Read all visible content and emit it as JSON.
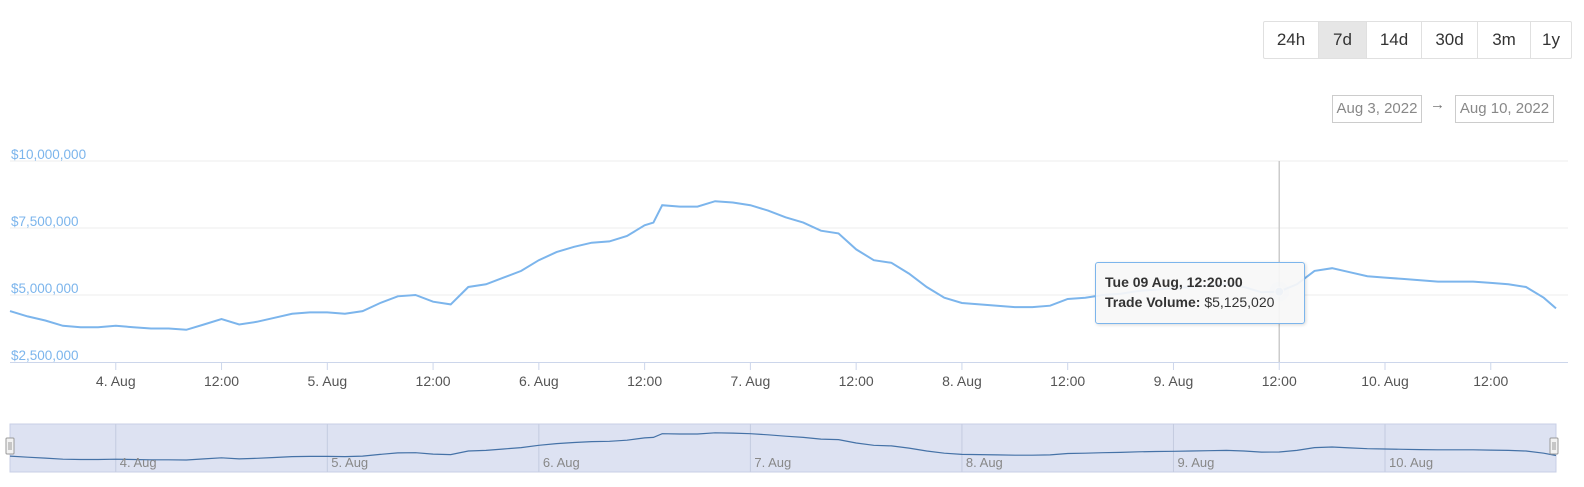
{
  "range_buttons": [
    {
      "label": "24h",
      "active": false
    },
    {
      "label": "7d",
      "active": true
    },
    {
      "label": "14d",
      "active": false
    },
    {
      "label": "30d",
      "active": false
    },
    {
      "label": "3m",
      "active": false
    },
    {
      "label": "1y",
      "active": false
    }
  ],
  "date_range": {
    "from": "Aug 3, 2022",
    "arrow": "→",
    "to": "Aug 10, 2022"
  },
  "tooltip": {
    "datetime": "Tue 09 Aug, 12:20:00",
    "label": "Trade Volume:",
    "value": "$5,125,020"
  },
  "colors": {
    "series": "#7cb5ec",
    "navigator_series": "#4572a7",
    "navigator_mask": "#dde2f2",
    "axis_label": "#7cb5ec"
  },
  "chart_data": {
    "type": "line",
    "x_unit": "hours since 4. Aug 00:00",
    "xlim": [
      -12.0,
      163.4
    ],
    "ylim": [
      2500000,
      10000000
    ],
    "y_ticks": [
      2500000,
      5000000,
      7500000,
      10000000
    ],
    "y_tick_labels": [
      "$2,500,000",
      "$5,000,000",
      "$7,500,000",
      "$10,000,000"
    ],
    "x_ticks": [
      0,
      12,
      24,
      36,
      48,
      60,
      72,
      84,
      96,
      108,
      120,
      132,
      144,
      156
    ],
    "x_tick_labels": [
      "4. Aug",
      "12:00",
      "5. Aug",
      "12:00",
      "6. Aug",
      "12:00",
      "7. Aug",
      "12:00",
      "8. Aug",
      "12:00",
      "9. Aug",
      "12:00",
      "10. Aug",
      "12:00"
    ],
    "navigator_labels": [
      "4. Aug",
      "5. Aug",
      "6. Aug",
      "7. Aug",
      "8. Aug",
      "9. Aug",
      "10. Aug"
    ],
    "navigator_ticks": [
      0,
      24,
      48,
      72,
      96,
      120,
      144
    ],
    "grid": true,
    "series": [
      {
        "name": "Trade Volume",
        "x": [
          -12,
          -10,
          -8,
          -6,
          -4,
          -2,
          0,
          2,
          4,
          6,
          8,
          10,
          12,
          14,
          16,
          18,
          20,
          22,
          24,
          26,
          28,
          30,
          32,
          34,
          36,
          38,
          40,
          42,
          44,
          46,
          48,
          50,
          52,
          54,
          56,
          58,
          60,
          61,
          62,
          64,
          66,
          68,
          70,
          72,
          74,
          76,
          78,
          80,
          82,
          84,
          86,
          88,
          90,
          92,
          94,
          96,
          98,
          100,
          102,
          104,
          106,
          108,
          110,
          112,
          114,
          116,
          118,
          120,
          122,
          124,
          126,
          128,
          130,
          132,
          134,
          136,
          138,
          140,
          142,
          144,
          146,
          148,
          150,
          152,
          154,
          156,
          158,
          160,
          162,
          163.4
        ],
        "y": [
          4400000,
          4200000,
          4050000,
          3850000,
          3800000,
          3800000,
          3850000,
          3800000,
          3750000,
          3750000,
          3700000,
          3900000,
          4100000,
          3900000,
          4000000,
          4150000,
          4300000,
          4350000,
          4350000,
          4300000,
          4400000,
          4700000,
          4950000,
          5000000,
          4750000,
          4650000,
          5300000,
          5400000,
          5650000,
          5900000,
          6300000,
          6600000,
          6800000,
          6950000,
          7000000,
          7200000,
          7600000,
          7700000,
          8350000,
          8300000,
          8300000,
          8500000,
          8450000,
          8350000,
          8150000,
          7900000,
          7700000,
          7400000,
          7300000,
          6700000,
          6300000,
          6200000,
          5800000,
          5300000,
          4900000,
          4700000,
          4650000,
          4600000,
          4550000,
          4550000,
          4600000,
          4850000,
          4900000,
          5000000,
          5050000,
          5150000,
          5200000,
          5250000,
          5300000,
          5350000,
          5400000,
          5300000,
          5100000,
          5125020,
          5400000,
          5900000,
          6000000,
          5850000,
          5700000,
          5650000,
          5600000,
          5550000,
          5500000,
          5500000,
          5500000,
          5450000,
          5400000,
          5300000,
          4900000,
          4500000
        ]
      }
    ]
  }
}
